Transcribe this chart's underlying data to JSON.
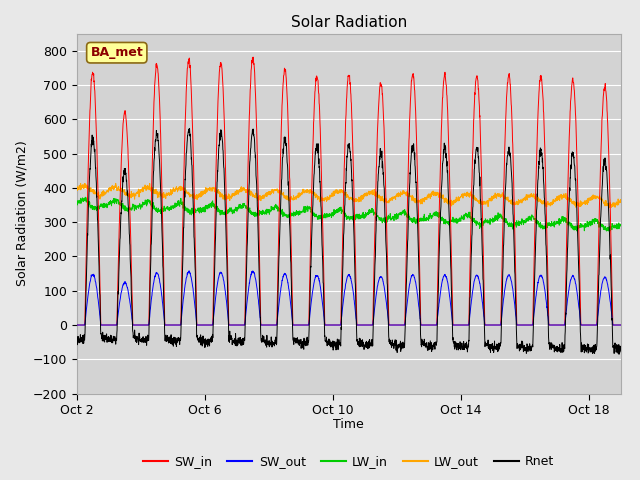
{
  "title": "Solar Radiation",
  "xlabel": "Time",
  "ylabel": "Solar Radiation (W/m2)",
  "station_label": "BA_met",
  "ylim": [
    -200,
    850
  ],
  "yticks": [
    -200,
    -100,
    0,
    100,
    200,
    300,
    400,
    500,
    600,
    700,
    800
  ],
  "xtick_labels": [
    "Oct 2",
    "Oct 6",
    "Oct 10",
    "Oct 14",
    "Oct 18"
  ],
  "xtick_positions": [
    1,
    5,
    9,
    13,
    17
  ],
  "colors": {
    "SW_in": "#FF0000",
    "SW_out": "#0000FF",
    "LW_in": "#00CC00",
    "LW_out": "#FFA500",
    "Rnet": "#000000"
  },
  "background_color": "#E8E8E8",
  "plot_bg_color": "#D3D3D3",
  "grid_color": "#FFFFFF",
  "num_days": 18,
  "num_points_per_day": 144,
  "seed": 42
}
